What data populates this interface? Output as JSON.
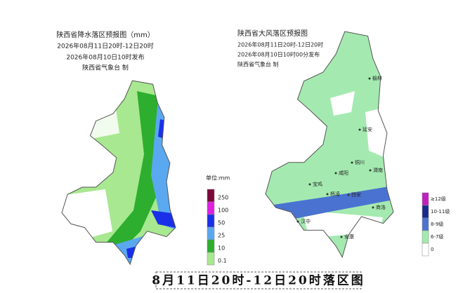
{
  "rain_map": {
    "title": "陕西省降水落区预报图（mm）",
    "period": "2026年08月11日20时-12日20时",
    "issued": "2026年08月10日10时发布",
    "maker": "陕西省气象台  制",
    "legend": {
      "unit": "单位:mm",
      "items": [
        {
          "label": "250",
          "color": "#7a0a3a"
        },
        {
          "label": "100",
          "color": "#e020e0"
        },
        {
          "label": "50",
          "color": "#1a30e8"
        },
        {
          "label": "25",
          "color": "#5aa8f0"
        },
        {
          "label": "10",
          "color": "#2eae2e"
        },
        {
          "label": "0.1",
          "color": "#a8e890"
        }
      ]
    }
  },
  "wind_map": {
    "title": "陕西省大风落区预报图",
    "period": "2026年08月11日20时-12日20时",
    "issued": "2026年08月10日10时00分发布",
    "maker": "陕西省气象台  制",
    "cities": [
      "榆林",
      "延安",
      "铜川",
      "渭南",
      "咸阳",
      "宝鸡",
      "杨凌",
      "西安",
      "商洛",
      "汉中",
      "安康"
    ],
    "legend": {
      "items": [
        {
          "label": "≥12级",
          "color": "#c020c0"
        },
        {
          "label": "10-11级",
          "color": "#1a2a90"
        },
        {
          "label": "8-9级",
          "color": "#4a72d0"
        },
        {
          "label": "6-7级",
          "color": "#a4eab0"
        },
        {
          "label": "0",
          "color": "#ffffff"
        }
      ]
    }
  },
  "caption": "8月11日20时-12日20时落区图"
}
